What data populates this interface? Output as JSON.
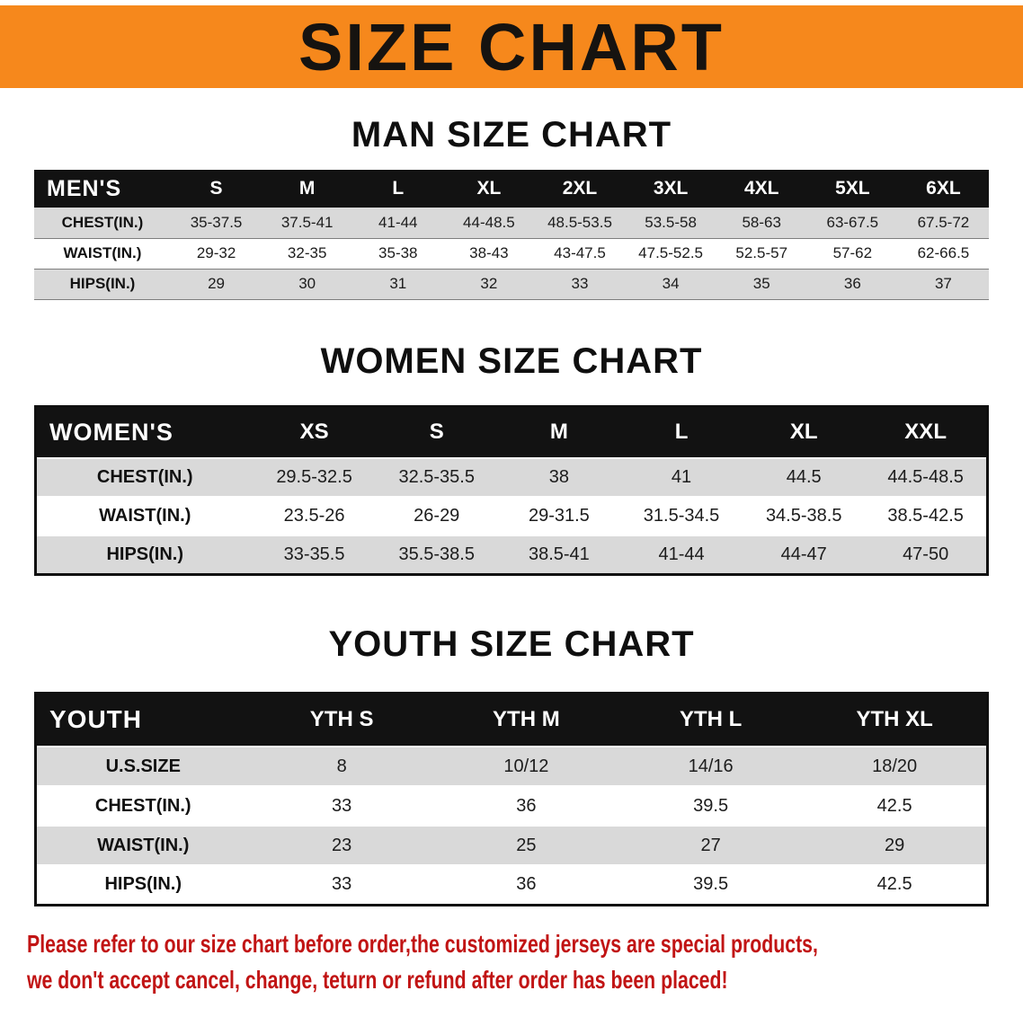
{
  "banner": {
    "title": "SIZE CHART"
  },
  "sections": {
    "men": {
      "heading": "MAN SIZE CHART",
      "table": {
        "header": [
          "MEN'S",
          "S",
          "M",
          "L",
          "XL",
          "2XL",
          "3XL",
          "4XL",
          "5XL",
          "6XL"
        ],
        "rows": [
          {
            "label": "CHEST(IN.)",
            "values": [
              "35-37.5",
              "37.5-41",
              "41-44",
              "44-48.5",
              "48.5-53.5",
              "53.5-58",
              "58-63",
              "63-67.5",
              "67.5-72"
            ]
          },
          {
            "label": "WAIST(IN.)",
            "values": [
              "29-32",
              "32-35",
              "35-38",
              "38-43",
              "43-47.5",
              "47.5-52.5",
              "52.5-57",
              "57-62",
              "62-66.5"
            ]
          },
          {
            "label": "HIPS(IN.)",
            "values": [
              "29",
              "30",
              "31",
              "32",
              "33",
              "34",
              "35",
              "36",
              "37"
            ]
          }
        ]
      }
    },
    "women": {
      "heading": "WOMEN SIZE CHART",
      "table": {
        "header": [
          "WOMEN'S",
          "XS",
          "S",
          "M",
          "L",
          "XL",
          "XXL"
        ],
        "rows": [
          {
            "label": "CHEST(IN.)",
            "values": [
              "29.5-32.5",
              "32.5-35.5",
              "38",
              "41",
              "44.5",
              "44.5-48.5"
            ]
          },
          {
            "label": "WAIST(IN.)",
            "values": [
              "23.5-26",
              "26-29",
              "29-31.5",
              "31.5-34.5",
              "34.5-38.5",
              "38.5-42.5"
            ]
          },
          {
            "label": "HIPS(IN.)",
            "values": [
              "33-35.5",
              "35.5-38.5",
              "38.5-41",
              "41-44",
              "44-47",
              "47-50"
            ]
          }
        ]
      }
    },
    "youth": {
      "heading": "YOUTH SIZE CHART",
      "table": {
        "header": [
          "YOUTH",
          "YTH S",
          "YTH M",
          "YTH L",
          "YTH XL"
        ],
        "rows": [
          {
            "label": "U.S.SIZE",
            "values": [
              "8",
              "10/12",
              "14/16",
              "18/20"
            ]
          },
          {
            "label": "CHEST(IN.)",
            "values": [
              "33",
              "36",
              "39.5",
              "42.5"
            ]
          },
          {
            "label": "WAIST(IN.)",
            "values": [
              "23",
              "25",
              "27",
              "29"
            ]
          },
          {
            "label": "HIPS(IN.)",
            "values": [
              "33",
              "36",
              "39.5",
              "42.5"
            ]
          }
        ]
      }
    }
  },
  "disclaimer": {
    "line1": "Please refer to our size chart before order,the customized jerseys are special products,",
    "line2": "we don't accept cancel, change, teturn or refund after order has been placed!"
  },
  "colors": {
    "banner_orange": "#f6881c",
    "header_black": "#121212",
    "row_gray": "#d9d9d9",
    "disclaimer_red": "#c11414"
  }
}
